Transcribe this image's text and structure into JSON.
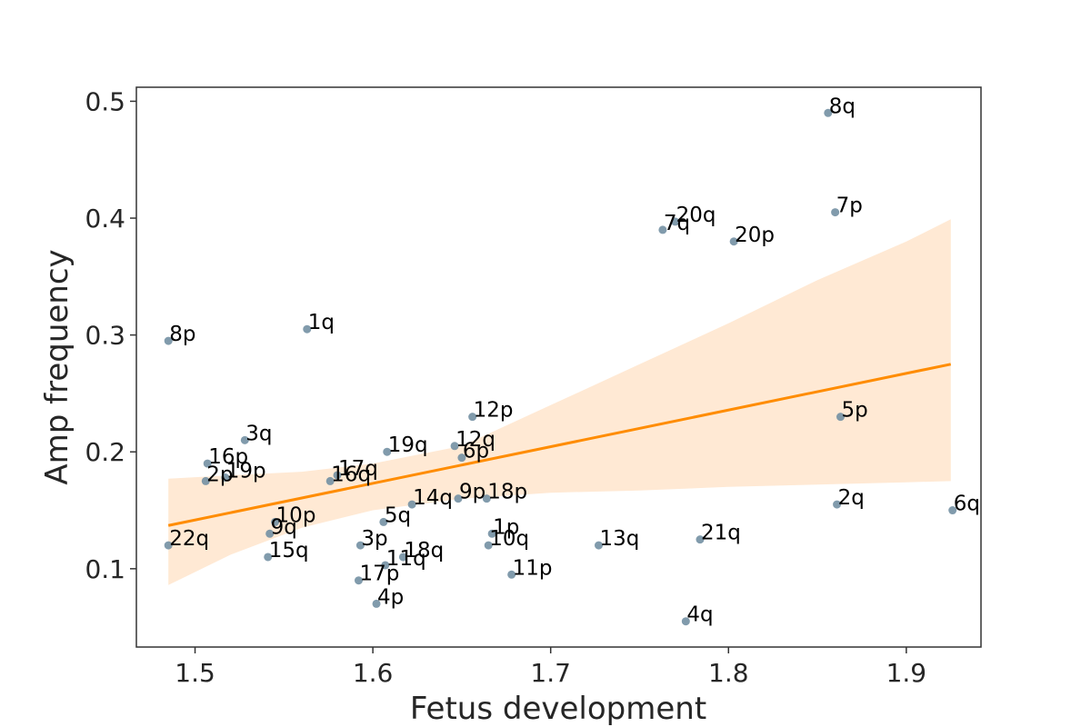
{
  "chart_data": {
    "type": "scatter",
    "title": "",
    "xlabel": "Fetus development",
    "ylabel": "Amp frequency",
    "xlim": [
      1.467,
      1.942
    ],
    "ylim": [
      0.033,
      0.512
    ],
    "xticks": [
      1.5,
      1.6,
      1.7,
      1.8,
      1.9
    ],
    "yticks": [
      0.1,
      0.2,
      0.3,
      0.4,
      0.5
    ],
    "xtick_labels": [
      "1.5",
      "1.6",
      "1.7",
      "1.8",
      "1.9"
    ],
    "ytick_labels": [
      "0.1",
      "0.2",
      "0.3",
      "0.4",
      "0.5"
    ],
    "grid": false,
    "colors": {
      "points": "#7390a3",
      "line": "#ff8c00",
      "band": "#ffe9d4",
      "axes": "#333333"
    },
    "points": [
      {
        "label": "8q",
        "x": 1.856,
        "y": 0.49
      },
      {
        "label": "7p",
        "x": 1.86,
        "y": 0.405
      },
      {
        "label": "7q",
        "x": 1.763,
        "y": 0.39
      },
      {
        "label": "20q",
        "x": 1.77,
        "y": 0.397
      },
      {
        "label": "20p",
        "x": 1.803,
        "y": 0.38
      },
      {
        "label": "8p",
        "x": 1.485,
        "y": 0.295
      },
      {
        "label": "1q",
        "x": 1.563,
        "y": 0.305
      },
      {
        "label": "12p",
        "x": 1.656,
        "y": 0.23
      },
      {
        "label": "5p",
        "x": 1.863,
        "y": 0.23
      },
      {
        "label": "3q",
        "x": 1.528,
        "y": 0.21
      },
      {
        "label": "19q",
        "x": 1.608,
        "y": 0.2
      },
      {
        "label": "12q",
        "x": 1.646,
        "y": 0.205
      },
      {
        "label": "6p",
        "x": 1.65,
        "y": 0.195
      },
      {
        "label": "16p",
        "x": 1.507,
        "y": 0.19
      },
      {
        "label": "2p",
        "x": 1.506,
        "y": 0.175
      },
      {
        "label": "19p",
        "x": 1.517,
        "y": 0.178
      },
      {
        "label": "17q",
        "x": 1.58,
        "y": 0.18
      },
      {
        "label": "16q",
        "x": 1.576,
        "y": 0.175
      },
      {
        "label": "9p",
        "x": 1.648,
        "y": 0.16
      },
      {
        "label": "18p",
        "x": 1.664,
        "y": 0.16
      },
      {
        "label": "14q",
        "x": 1.622,
        "y": 0.155
      },
      {
        "label": "2q",
        "x": 1.861,
        "y": 0.155
      },
      {
        "label": "6q",
        "x": 1.926,
        "y": 0.15
      },
      {
        "label": "10p",
        "x": 1.545,
        "y": 0.14
      },
      {
        "label": "5q",
        "x": 1.606,
        "y": 0.14
      },
      {
        "label": "9q",
        "x": 1.542,
        "y": 0.13
      },
      {
        "label": "1p",
        "x": 1.667,
        "y": 0.13
      },
      {
        "label": "22q",
        "x": 1.485,
        "y": 0.12
      },
      {
        "label": "3p",
        "x": 1.593,
        "y": 0.12
      },
      {
        "label": "10q",
        "x": 1.665,
        "y": 0.12
      },
      {
        "label": "13q",
        "x": 1.727,
        "y": 0.12
      },
      {
        "label": "21q",
        "x": 1.784,
        "y": 0.125
      },
      {
        "label": "15q",
        "x": 1.541,
        "y": 0.11
      },
      {
        "label": "18q",
        "x": 1.617,
        "y": 0.11
      },
      {
        "label": "11q",
        "x": 1.607,
        "y": 0.103
      },
      {
        "label": "17p",
        "x": 1.592,
        "y": 0.09
      },
      {
        "label": "11p",
        "x": 1.678,
        "y": 0.095
      },
      {
        "label": "4p",
        "x": 1.602,
        "y": 0.07
      },
      {
        "label": "4q",
        "x": 1.776,
        "y": 0.055
      }
    ],
    "regression": {
      "x": [
        1.485,
        1.925
      ],
      "y": [
        0.137,
        0.275
      ]
    },
    "confidence_band": {
      "x": [
        1.485,
        1.52,
        1.56,
        1.6,
        1.65,
        1.7,
        1.75,
        1.8,
        1.85,
        1.9,
        1.925
      ],
      "upper": [
        0.177,
        0.18,
        0.183,
        0.19,
        0.205,
        0.24,
        0.275,
        0.31,
        0.347,
        0.38,
        0.399
      ],
      "lower": [
        0.086,
        0.112,
        0.135,
        0.15,
        0.16,
        0.165,
        0.167,
        0.17,
        0.172,
        0.174,
        0.175
      ]
    }
  }
}
